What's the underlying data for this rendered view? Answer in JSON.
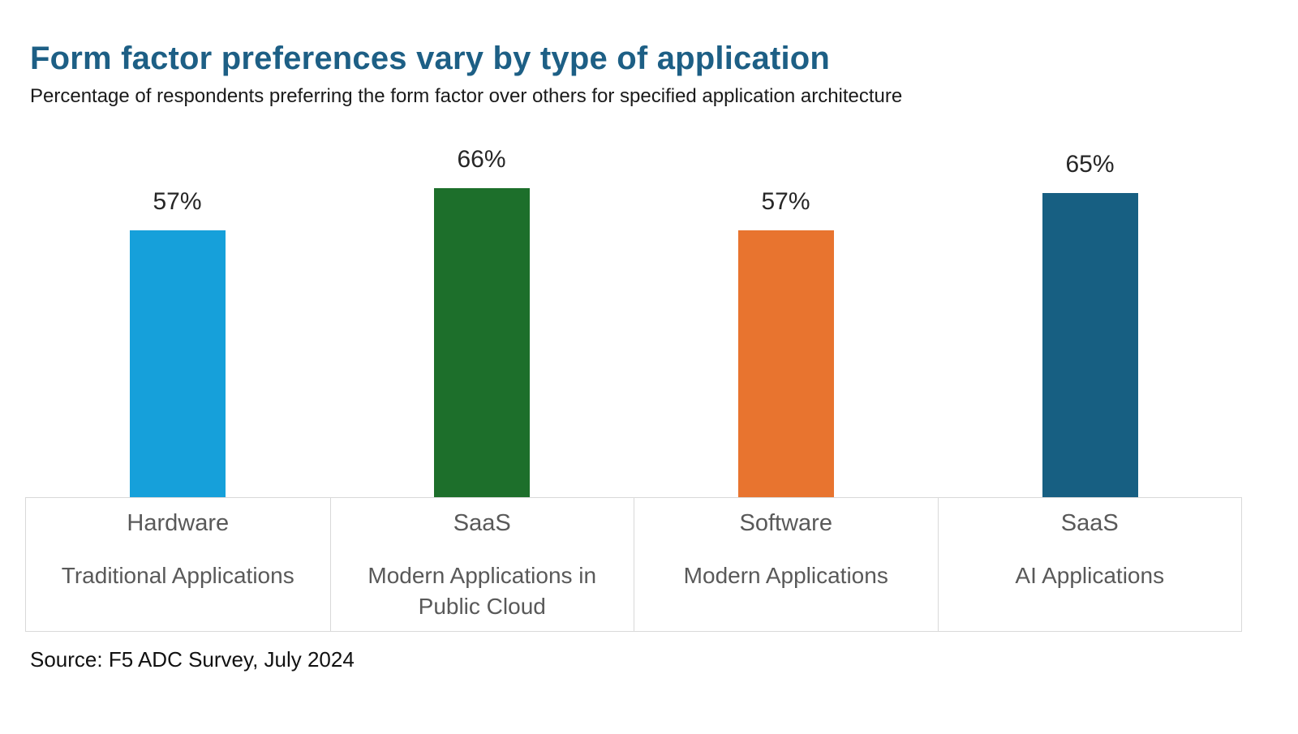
{
  "header": {
    "title": "Form factor preferences vary by type of application",
    "subtitle": "Percentage of respondents preferring the form factor over others for specified application architecture"
  },
  "chart_data": {
    "type": "bar",
    "title": "Form factor preferences vary by type of application",
    "subtitle": "Percentage of respondents preferring the form factor over others for specified application architecture",
    "categories": [
      "Hardware",
      "SaaS",
      "Software",
      "SaaS"
    ],
    "category_descriptions": [
      "Traditional Applications",
      "Modern Applications in Public Cloud",
      "Modern Applications",
      "AI Applications"
    ],
    "values": [
      57,
      66,
      57,
      65
    ],
    "display_values": [
      "57%",
      "66%",
      "57%",
      "65%"
    ],
    "unit": "percent",
    "ylim": [
      0,
      80
    ],
    "grid": false,
    "legend": false,
    "axes_shown": false,
    "value_labels_shown": true,
    "colors": [
      "#16A0DA",
      "#1D6F2B",
      "#E8742F",
      "#175F82"
    ],
    "source": "Source: F5 ADC Survey, July 2024"
  },
  "theme": {
    "title_color": "#1D5F85",
    "category_text_color": "#595959",
    "value_label_color": "#262626",
    "table_border_color": "#D9D9D9",
    "background_color": "#FFFFFF"
  },
  "footer": {
    "source": "Source: F5 ADC Survey, July 2024"
  }
}
